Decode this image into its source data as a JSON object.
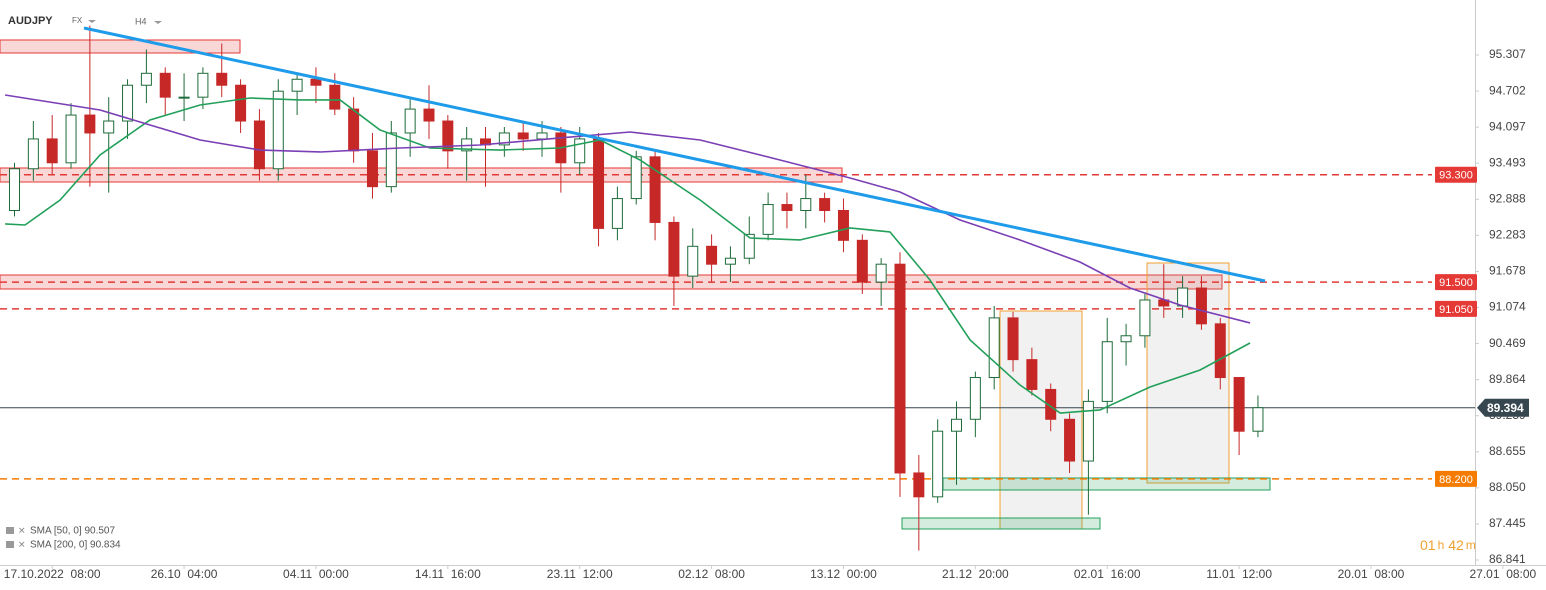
{
  "chart_data": {
    "type": "candlestick",
    "symbol": "AUDJPY",
    "market": "FX",
    "timeframe": "H4",
    "up_color": "#1e6b3a",
    "down_color": "#c62828",
    "open": [
      92.7,
      93.4,
      93.9,
      93.5,
      94.3,
      94.0,
      94.2,
      94.8,
      95.0,
      94.6,
      94.6,
      95.0,
      94.8,
      94.2,
      93.4,
      94.7,
      94.9,
      94.8,
      94.4,
      93.7,
      93.1,
      94.0,
      94.4,
      94.2,
      93.7,
      93.9,
      93.8,
      94.0,
      93.9,
      94.0,
      93.5,
      93.9,
      92.4,
      92.9,
      93.6,
      92.5,
      91.6,
      92.1,
      91.8,
      91.9,
      92.3,
      92.8,
      92.7,
      92.9,
      92.7,
      92.2,
      91.5,
      91.8,
      88.3,
      87.9,
      89.0,
      89.2,
      89.9,
      90.9,
      90.2,
      89.7,
      89.2,
      88.5,
      89.5,
      90.5,
      90.6,
      91.2,
      91.1,
      91.4,
      90.8,
      89.9,
      89.0
    ],
    "high": [
      93.5,
      94.2,
      94.3,
      94.5,
      95.8,
      94.6,
      94.9,
      95.4,
      95.1,
      95.0,
      95.1,
      95.5,
      94.9,
      94.4,
      94.9,
      95.0,
      95.1,
      95.0,
      94.6,
      94.0,
      94.2,
      94.6,
      94.8,
      94.3,
      94.1,
      94.1,
      94.1,
      94.2,
      94.2,
      94.1,
      94.1,
      94.0,
      93.1,
      93.7,
      93.7,
      92.6,
      92.4,
      92.3,
      92.1,
      92.6,
      93.0,
      93.0,
      93.3,
      93.0,
      92.9,
      92.3,
      91.9,
      92.0,
      88.6,
      89.2,
      89.5,
      90.0,
      91.1,
      91.0,
      90.4,
      89.8,
      89.3,
      89.7,
      90.9,
      90.8,
      91.3,
      91.8,
      91.6,
      91.6,
      90.9,
      89.9,
      89.6
    ],
    "low": [
      92.6,
      93.2,
      93.3,
      93.4,
      93.1,
      93.0,
      93.9,
      94.5,
      94.3,
      94.2,
      94.4,
      94.6,
      94.0,
      93.2,
      93.2,
      94.3,
      94.5,
      94.3,
      93.5,
      92.9,
      93.0,
      93.6,
      93.9,
      93.4,
      93.2,
      93.1,
      93.6,
      93.7,
      93.6,
      93.0,
      93.3,
      92.1,
      92.2,
      92.8,
      92.2,
      91.1,
      91.4,
      91.5,
      91.5,
      91.8,
      92.2,
      92.4,
      92.4,
      92.5,
      92.0,
      91.3,
      91.1,
      87.9,
      87.0,
      87.8,
      88.1,
      88.9,
      89.7,
      90.0,
      89.6,
      89.0,
      88.3,
      87.6,
      89.3,
      90.1,
      90.4,
      90.9,
      90.9,
      90.7,
      89.7,
      88.6,
      88.9
    ],
    "close": [
      93.4,
      93.9,
      93.5,
      94.3,
      94.0,
      94.2,
      94.8,
      95.0,
      94.6,
      94.6,
      95.0,
      94.8,
      94.2,
      93.4,
      94.7,
      94.9,
      94.8,
      94.4,
      93.7,
      93.1,
      94.0,
      94.4,
      94.2,
      93.7,
      93.9,
      93.8,
      94.0,
      93.9,
      94.0,
      93.5,
      93.9,
      92.4,
      92.9,
      93.6,
      92.5,
      91.6,
      92.1,
      91.8,
      91.9,
      92.3,
      92.8,
      92.7,
      92.9,
      92.7,
      92.2,
      91.5,
      91.8,
      88.3,
      87.9,
      89.0,
      89.2,
      89.9,
      90.9,
      90.2,
      89.7,
      89.2,
      88.5,
      89.5,
      90.5,
      90.6,
      91.2,
      91.1,
      91.4,
      90.8,
      89.9,
      89.0,
      89.394
    ],
    "series": [
      {
        "name": "SMA [50, 0] 90.507",
        "color": "#22a05a",
        "x": [
          -0.5,
          0.56,
          2.42,
          4.54,
          7.19,
          9.85,
          12.5,
          15.15,
          17.28,
          19.4,
          22.05,
          25.77,
          28.95,
          31.08,
          33.2,
          36.39,
          39.04,
          41.69,
          44.35,
          46.47,
          48.59,
          50.72,
          53.37,
          55.5,
          57.62,
          60.27,
          62.93,
          65.58
        ],
        "values": [
          92.474,
          92.457,
          92.876,
          93.631,
          94.218,
          94.469,
          94.586,
          94.553,
          94.553,
          94.05,
          93.748,
          93.714,
          93.748,
          93.882,
          93.547,
          92.876,
          92.239,
          92.206,
          92.407,
          92.34,
          91.535,
          90.529,
          89.775,
          89.305,
          89.356,
          89.741,
          90.026,
          90.479
        ]
      },
      {
        "name": "SMA [200, 0] 90.834",
        "color": "#7b3fb5",
        "x": [
          -0.5,
          4.54,
          7.19,
          9.85,
          13.03,
          16.22,
          20.46,
          24.71,
          28.95,
          32.67,
          36.39,
          40.63,
          44.35,
          47.0,
          50.19,
          53.37,
          56.55,
          59.21,
          61.86,
          65.58
        ],
        "values": [
          94.636,
          94.385,
          94.134,
          93.882,
          93.714,
          93.681,
          93.748,
          93.798,
          93.916,
          94.016,
          93.882,
          93.547,
          93.245,
          93.01,
          92.541,
          92.206,
          91.837,
          91.401,
          91.116,
          90.815
        ]
      }
    ],
    "levels": [
      {
        "value": 93.3,
        "label": "93.300",
        "color": "#e53935"
      },
      {
        "value": 91.5,
        "label": "91.500",
        "color": "#e53935"
      },
      {
        "value": 91.05,
        "label": "91.050",
        "color": "#e53935"
      },
      {
        "value": 88.2,
        "label": "88.200",
        "color": "#f57c00"
      }
    ],
    "last_price": 89.394,
    "ylim": [
      86.757,
      96.229
    ],
    "yticks": [
      95.307,
      94.702,
      94.097,
      93.493,
      92.888,
      92.283,
      91.678,
      91.074,
      90.469,
      89.864,
      89.259,
      88.655,
      {
        "value": 88.05,
        "label": "88.050"
      },
      87.445,
      86.841
    ],
    "xlim": [
      -0.77,
      79.67
    ],
    "xticks": [
      {
        "value": 2,
        "label": "17.10.2022  08:00"
      },
      {
        "value": 9,
        "label": "26.10  04:00"
      },
      {
        "value": 16,
        "label": "04.11  00:00"
      },
      {
        "value": 23,
        "label": "14.11  16:00"
      },
      {
        "value": 30,
        "label": "23.11  12:00"
      },
      {
        "value": 37,
        "label": "02.12  08:00"
      },
      {
        "value": 44,
        "label": "13.12  00:00"
      },
      {
        "value": 51,
        "label": "21.12  20:00"
      },
      {
        "value": 58,
        "label": "02.01  16:00"
      },
      {
        "value": 65,
        "label": "11.01  12:00"
      },
      {
        "value": 72,
        "label": "20.01  08:00"
      },
      {
        "value": 79,
        "label": "27.01  08:00"
      }
    ],
    "countdown": {
      "hours": "01",
      "h": "h",
      "minutes": "42",
      "m": "m"
    }
  }
}
